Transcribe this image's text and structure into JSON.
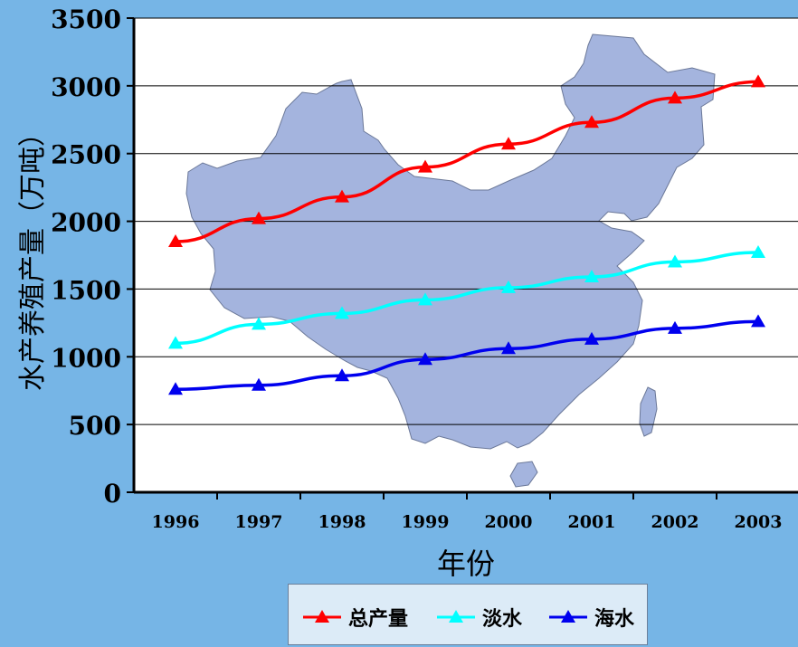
{
  "chart_data": {
    "type": "line",
    "xlabel": "年份",
    "ylabel": "水产养殖产量（万吨）",
    "categories": [
      "1996",
      "1997",
      "1998",
      "1999",
      "2000",
      "2001",
      "2002",
      "2003"
    ],
    "ylim": [
      0,
      3500
    ],
    "yticks": [
      0,
      500,
      1000,
      1500,
      2000,
      2500,
      3000,
      3500
    ],
    "grid": true,
    "legend_position": "bottom",
    "series": [
      {
        "name": "总产量",
        "color": "#ff0000",
        "marker": "triangle",
        "values": [
          1850,
          2020,
          2180,
          2400,
          2570,
          2730,
          2910,
          3030
        ]
      },
      {
        "name": "淡水",
        "color": "#00ffff",
        "marker": "triangle",
        "values": [
          1100,
          1240,
          1320,
          1420,
          1510,
          1590,
          1700,
          1770
        ]
      },
      {
        "name": "海水",
        "color": "#0000ee",
        "marker": "triangle",
        "values": [
          760,
          790,
          860,
          980,
          1060,
          1130,
          1210,
          1260
        ]
      }
    ],
    "background_image": "china-map",
    "map_color": "#a4b4de"
  }
}
